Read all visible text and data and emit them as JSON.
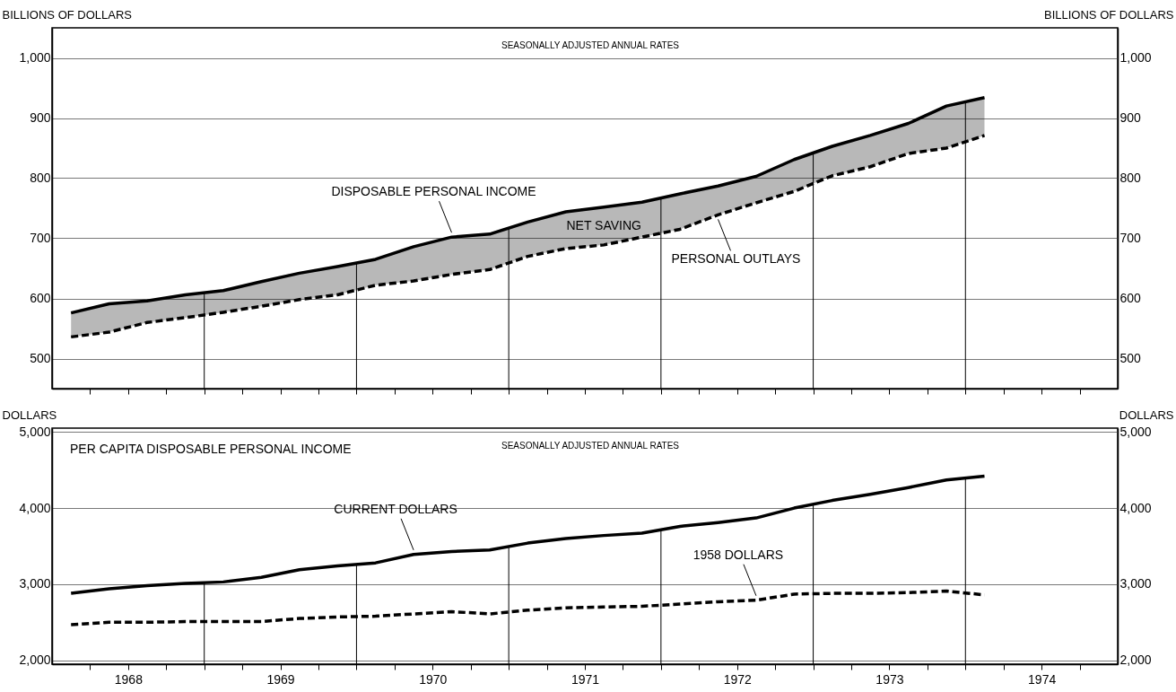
{
  "chart_data": [
    {
      "type": "line",
      "ylabel": "BILLIONS OF DOLLARS",
      "y2label": "BILLIONS OF DOLLARS",
      "annotations": [
        "SEASONALLY ADJUSTED ANNUAL RATES",
        "NET SAVING",
        {
          "text": "DISPOSABLE PERSONAL INCOME",
          "x": 1970.625,
          "y": 702
        },
        {
          "text": "PERSONAL OUTLAYS",
          "x": 1972.375,
          "y": 739
        }
      ],
      "x": [
        1968.125,
        1968.375,
        1968.625,
        1968.875,
        1969.125,
        1969.375,
        1969.625,
        1969.875,
        1970.125,
        1970.375,
        1970.625,
        1970.875,
        1971.125,
        1971.375,
        1971.625,
        1971.875,
        1972.125,
        1972.375,
        1972.625,
        1972.875,
        1973.125,
        1973.375,
        1973.625,
        1973.875,
        1974.125
      ],
      "xlim": [
        1968,
        1975
      ],
      "xticks": [
        {
          "value": 1968.25,
          "label": null
        },
        {
          "value": 1968.5,
          "label": null
        },
        {
          "value": 1968.75,
          "label": null
        },
        {
          "value": 1969,
          "label": null
        },
        {
          "value": 1969.25,
          "label": null
        },
        {
          "value": 1969.5,
          "label": null
        },
        {
          "value": 1969.75,
          "label": null
        },
        {
          "value": 1970,
          "label": null
        },
        {
          "value": 1970.25,
          "label": null
        },
        {
          "value": 1970.5,
          "label": null
        },
        {
          "value": 1970.75,
          "label": null
        },
        {
          "value": 1971,
          "label": null
        },
        {
          "value": 1971.25,
          "label": null
        },
        {
          "value": 1971.5,
          "label": null
        },
        {
          "value": 1971.75,
          "label": null
        },
        {
          "value": 1972,
          "label": null
        },
        {
          "value": 1972.25,
          "label": null
        },
        {
          "value": 1972.5,
          "label": null
        },
        {
          "value": 1972.75,
          "label": null
        },
        {
          "value": 1973,
          "label": null
        },
        {
          "value": 1973.25,
          "label": null
        },
        {
          "value": 1973.5,
          "label": null
        },
        {
          "value": 1973.75,
          "label": null
        },
        {
          "value": 1974,
          "label": null
        },
        {
          "value": 1974.25,
          "label": null
        },
        {
          "value": 1974.5,
          "label": null
        },
        {
          "value": 1974.75,
          "label": null
        }
      ],
      "ylim": [
        450,
        1050
      ],
      "yticks": [
        500,
        600,
        700,
        800,
        900,
        {
          "value": 1000,
          "label": "1,000"
        }
      ],
      "y2lim": [
        450,
        1050
      ],
      "y2ticks": [
        500,
        600,
        700,
        800,
        900,
        {
          "value": 1000,
          "label": "1,000"
        }
      ],
      "grid": "y",
      "tick_labels": "y",
      "ref_lines": [
        {
          "axis": "x",
          "value": 1969
        },
        {
          "axis": "x",
          "value": 1970
        },
        {
          "axis": "x",
          "value": 1971
        },
        {
          "axis": "x",
          "value": 1972
        },
        {
          "axis": "x",
          "value": 1973
        },
        {
          "axis": "x",
          "value": 1974
        }
      ],
      "series": [
        {
          "color": "#000000",
          "line_style": "solid",
          "values": [
            576,
            591,
            596,
            606,
            613,
            628,
            642,
            653,
            665,
            686,
            702,
            707,
            727,
            744,
            752,
            760,
            774,
            787,
            803,
            831,
            853,
            871,
            891,
            920,
            934
          ],
          "lower": [
            536,
            544,
            560,
            568,
            577,
            587,
            598,
            606,
            622,
            629,
            640,
            648,
            670,
            683,
            689,
            702,
            715,
            739,
            759,
            778,
            804,
            819,
            841,
            850,
            871
          ],
          "upper": [
            576,
            591,
            596,
            606,
            613,
            628,
            642,
            653,
            665,
            686,
            702,
            707,
            727,
            744,
            752,
            760,
            774,
            787,
            803,
            831,
            853,
            871,
            891,
            920,
            934
          ]
        },
        {
          "color": "#000000",
          "line_style": "dashed",
          "values": [
            536,
            544,
            560,
            568,
            577,
            587,
            598,
            606,
            622,
            629,
            640,
            648,
            670,
            683,
            689,
            702,
            715,
            739,
            759,
            778,
            804,
            819,
            841,
            850,
            871
          ]
        }
      ]
    },
    {
      "type": "line",
      "title": "PER CAPITA DISPOSABLE PERSONAL INCOME",
      "ylabel": "DOLLARS",
      "y2label": "DOLLARS",
      "annotations": [
        "SEASONALLY ADJUSTED ANNUAL RATES",
        {
          "text": "CURRENT DOLLARS",
          "x": 1970.375,
          "y": 3390
        },
        {
          "text": "1958 DOLLARS",
          "x": 1972.625,
          "y": 2790
        }
      ],
      "x": [
        1968.125,
        1968.375,
        1968.625,
        1968.875,
        1969.125,
        1969.375,
        1969.625,
        1969.875,
        1970.125,
        1970.375,
        1970.625,
        1970.875,
        1971.125,
        1971.375,
        1971.625,
        1971.875,
        1972.125,
        1972.375,
        1972.625,
        1972.875,
        1973.125,
        1973.375,
        1973.625,
        1973.875,
        1974.125
      ],
      "xlim": [
        1968,
        1975
      ],
      "xticks": [
        {
          "value": 1968.25,
          "label": null
        },
        {
          "value": 1968.5,
          "label": "1968"
        },
        {
          "value": 1968.75,
          "label": null
        },
        {
          "value": 1969,
          "label": null
        },
        {
          "value": 1969.25,
          "label": null
        },
        {
          "value": 1969.5,
          "label": "1969"
        },
        {
          "value": 1969.75,
          "label": null
        },
        {
          "value": 1970,
          "label": null
        },
        {
          "value": 1970.25,
          "label": null
        },
        {
          "value": 1970.5,
          "label": "1970"
        },
        {
          "value": 1970.75,
          "label": null
        },
        {
          "value": 1971,
          "label": null
        },
        {
          "value": 1971.25,
          "label": null
        },
        {
          "value": 1971.5,
          "label": "1971"
        },
        {
          "value": 1971.75,
          "label": null
        },
        {
          "value": 1972,
          "label": null
        },
        {
          "value": 1972.25,
          "label": null
        },
        {
          "value": 1972.5,
          "label": "1972"
        },
        {
          "value": 1972.75,
          "label": null
        },
        {
          "value": 1973,
          "label": null
        },
        {
          "value": 1973.25,
          "label": null
        },
        {
          "value": 1973.5,
          "label": "1973"
        },
        {
          "value": 1973.75,
          "label": null
        },
        {
          "value": 1974,
          "label": null
        },
        {
          "value": 1974.25,
          "label": null
        },
        {
          "value": 1974.5,
          "label": "1974"
        },
        {
          "value": 1974.75,
          "label": null
        }
      ],
      "ylim": [
        1950,
        5050
      ],
      "yticks": [
        {
          "value": 2000,
          "label": "2,000"
        },
        {
          "value": 3000,
          "label": "3,000"
        },
        {
          "value": 4000,
          "label": "4,000"
        },
        {
          "value": 5000,
          "label": "5,000"
        }
      ],
      "y2lim": [
        1950,
        5050
      ],
      "y2ticks": [
        {
          "value": 2000,
          "label": "2,000"
        },
        {
          "value": 3000,
          "label": "3,000"
        },
        {
          "value": 4000,
          "label": "4,000"
        },
        {
          "value": 5000,
          "label": "5,000"
        }
      ],
      "grid": "y",
      "ref_lines": [
        {
          "axis": "x",
          "value": 1969
        },
        {
          "axis": "x",
          "value": 1970
        },
        {
          "axis": "x",
          "value": 1971
        },
        {
          "axis": "x",
          "value": 1972
        },
        {
          "axis": "x",
          "value": 1973
        },
        {
          "axis": "x",
          "value": 1974
        }
      ],
      "series": [
        {
          "color": "#000000",
          "line_style": "solid",
          "values": [
            2880,
            2940,
            2980,
            3010,
            3030,
            3090,
            3190,
            3240,
            3280,
            3390,
            3430,
            3450,
            3540,
            3600,
            3640,
            3670,
            3760,
            3810,
            3870,
            4000,
            4100,
            4180,
            4270,
            4370,
            4420
          ]
        },
        {
          "color": "#000000",
          "line_style": "dashed",
          "values": [
            2470,
            2500,
            2500,
            2510,
            2510,
            2510,
            2550,
            2570,
            2580,
            2610,
            2640,
            2610,
            2660,
            2690,
            2700,
            2710,
            2740,
            2770,
            2790,
            2870,
            2880,
            2880,
            2890,
            2910,
            2860
          ]
        }
      ]
    }
  ]
}
